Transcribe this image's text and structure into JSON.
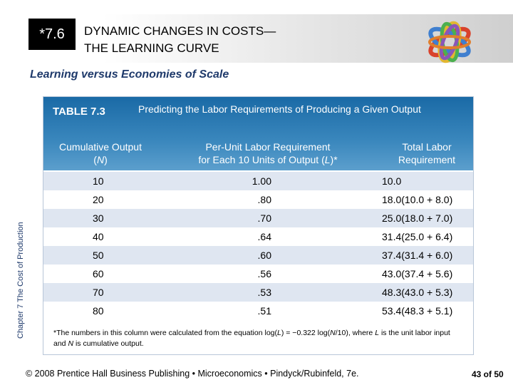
{
  "header": {
    "section_number": "*7.6",
    "title_line1": "DYNAMIC CHANGES IN COSTS—",
    "title_line2": "THE LEARNING CURVE",
    "logo_icon": "interlocking-rings-icon"
  },
  "subtitle": "Learning versus Economies of Scale",
  "side_label": "Chapter 7  The Cost of Production",
  "table": {
    "label": "TABLE 7.3",
    "caption": "Predicting the Labor Requirements of Producing a Given Output",
    "columns": [
      {
        "line1": "Cumulative Output",
        "line2_pre": "(",
        "line2_var": "N",
        "line2_post": ")"
      },
      {
        "line1": "Per-Unit Labor Requirement",
        "line2_pre": "for Each 10 Units of Output (",
        "line2_var": "L",
        "line2_post": ")*"
      },
      {
        "line1": "Total Labor",
        "line2_pre": "Requirement",
        "line2_var": "",
        "line2_post": ""
      }
    ],
    "rows": [
      {
        "n": "10",
        "l": "1.00",
        "total": "10.0"
      },
      {
        "n": "20",
        "l": ".80",
        "total": "18.0(10.0 + 8.0)"
      },
      {
        "n": "30",
        "l": ".70",
        "total": "25.0(18.0 + 7.0)"
      },
      {
        "n": "40",
        "l": ".64",
        "total": "31.4(25.0 + 6.4)"
      },
      {
        "n": "50",
        "l": ".60",
        "total": "37.4(31.4 + 6.0)"
      },
      {
        "n": "60",
        "l": ".56",
        "total": "43.0(37.4 + 5.6)"
      },
      {
        "n": "70",
        "l": ".53",
        "total": "48.3(43.0 + 5.3)"
      },
      {
        "n": "80",
        "l": ".51",
        "total": "53.4(48.3 + 5.1)"
      }
    ],
    "footnote": {
      "p1": "*The numbers in this column were calculated from the equation log(",
      "v1": "L",
      "p2": ") = −0.322 log(",
      "v2": "N",
      "p3": "/10), where ",
      "v3": "L",
      "p4": " is the unit labor input and ",
      "v4": "N",
      "p5": " is cumulative output."
    }
  },
  "footer": {
    "text": "© 2008 Prentice Hall Business Publishing  •  Microeconomics  •  Pindyck/Rubinfeld, 7e.",
    "page": "43 of 50"
  },
  "colors": {
    "table_header": "#2a78b2",
    "row_stripe": "#dfe6f1",
    "subtitle": "#1f3a6b"
  }
}
